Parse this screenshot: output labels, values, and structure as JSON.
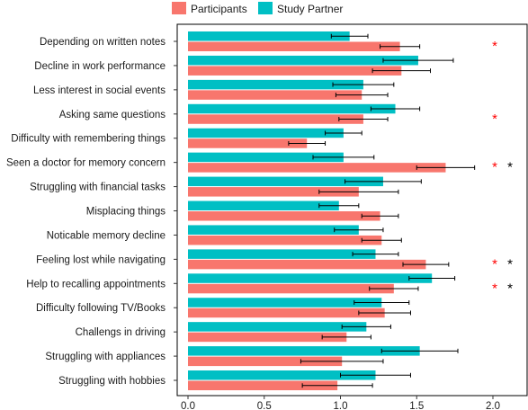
{
  "colors": {
    "participants": "#F8766D",
    "study_partner": "#00BFC4",
    "sig_red": "#FF0000",
    "sig_black": "#000000"
  },
  "chart_data": {
    "type": "bar",
    "orientation": "horizontal",
    "title": "",
    "xlabel": "",
    "ylabel": "",
    "xlim": [
      0,
      2.15
    ],
    "xticks": [
      "0.0",
      "0.5",
      "1.0",
      "1.5",
      "2.0"
    ],
    "legend": {
      "position": "top",
      "entries": [
        "Participants",
        "Study Partner"
      ]
    },
    "categories": [
      "Depending on written notes",
      "Decline in work performance",
      "Less interest in social events",
      "Asking same questions",
      "Difficulty with remembering things",
      "Seen a doctor for memory concern",
      "Struggling with financial tasks",
      "Misplacing things",
      "Noticable memory decline",
      "Feeling lost while navigating",
      "Help to recalling appointments",
      "Difficulty following TV/Books",
      "Challengs in driving",
      "Struggling with appliances",
      "Struggling with hobbies"
    ],
    "series": [
      {
        "name": "Study Partner",
        "values": [
          1.06,
          1.51,
          1.15,
          1.36,
          1.02,
          1.02,
          1.28,
          0.99,
          1.12,
          1.23,
          1.6,
          1.27,
          1.17,
          1.52,
          1.23
        ],
        "err": [
          0.12,
          0.23,
          0.2,
          0.16,
          0.12,
          0.2,
          0.25,
          0.13,
          0.16,
          0.15,
          0.15,
          0.18,
          0.16,
          0.25,
          0.23
        ]
      },
      {
        "name": "Participants",
        "values": [
          1.39,
          1.4,
          1.14,
          1.15,
          0.78,
          1.69,
          1.12,
          1.26,
          1.27,
          1.56,
          1.35,
          1.29,
          1.04,
          1.01,
          0.98
        ],
        "err": [
          0.13,
          0.19,
          0.17,
          0.16,
          0.12,
          0.19,
          0.26,
          0.12,
          0.13,
          0.15,
          0.16,
          0.17,
          0.16,
          0.27,
          0.23
        ]
      }
    ],
    "significance": [
      {
        "category_index": 0,
        "marks": [
          "red"
        ]
      },
      {
        "category_index": 3,
        "marks": [
          "red"
        ]
      },
      {
        "category_index": 5,
        "marks": [
          "red",
          "black"
        ]
      },
      {
        "category_index": 9,
        "marks": [
          "red",
          "black"
        ]
      },
      {
        "category_index": 10,
        "marks": [
          "red",
          "black"
        ]
      }
    ],
    "significance_symbol": "*",
    "grid": false
  }
}
